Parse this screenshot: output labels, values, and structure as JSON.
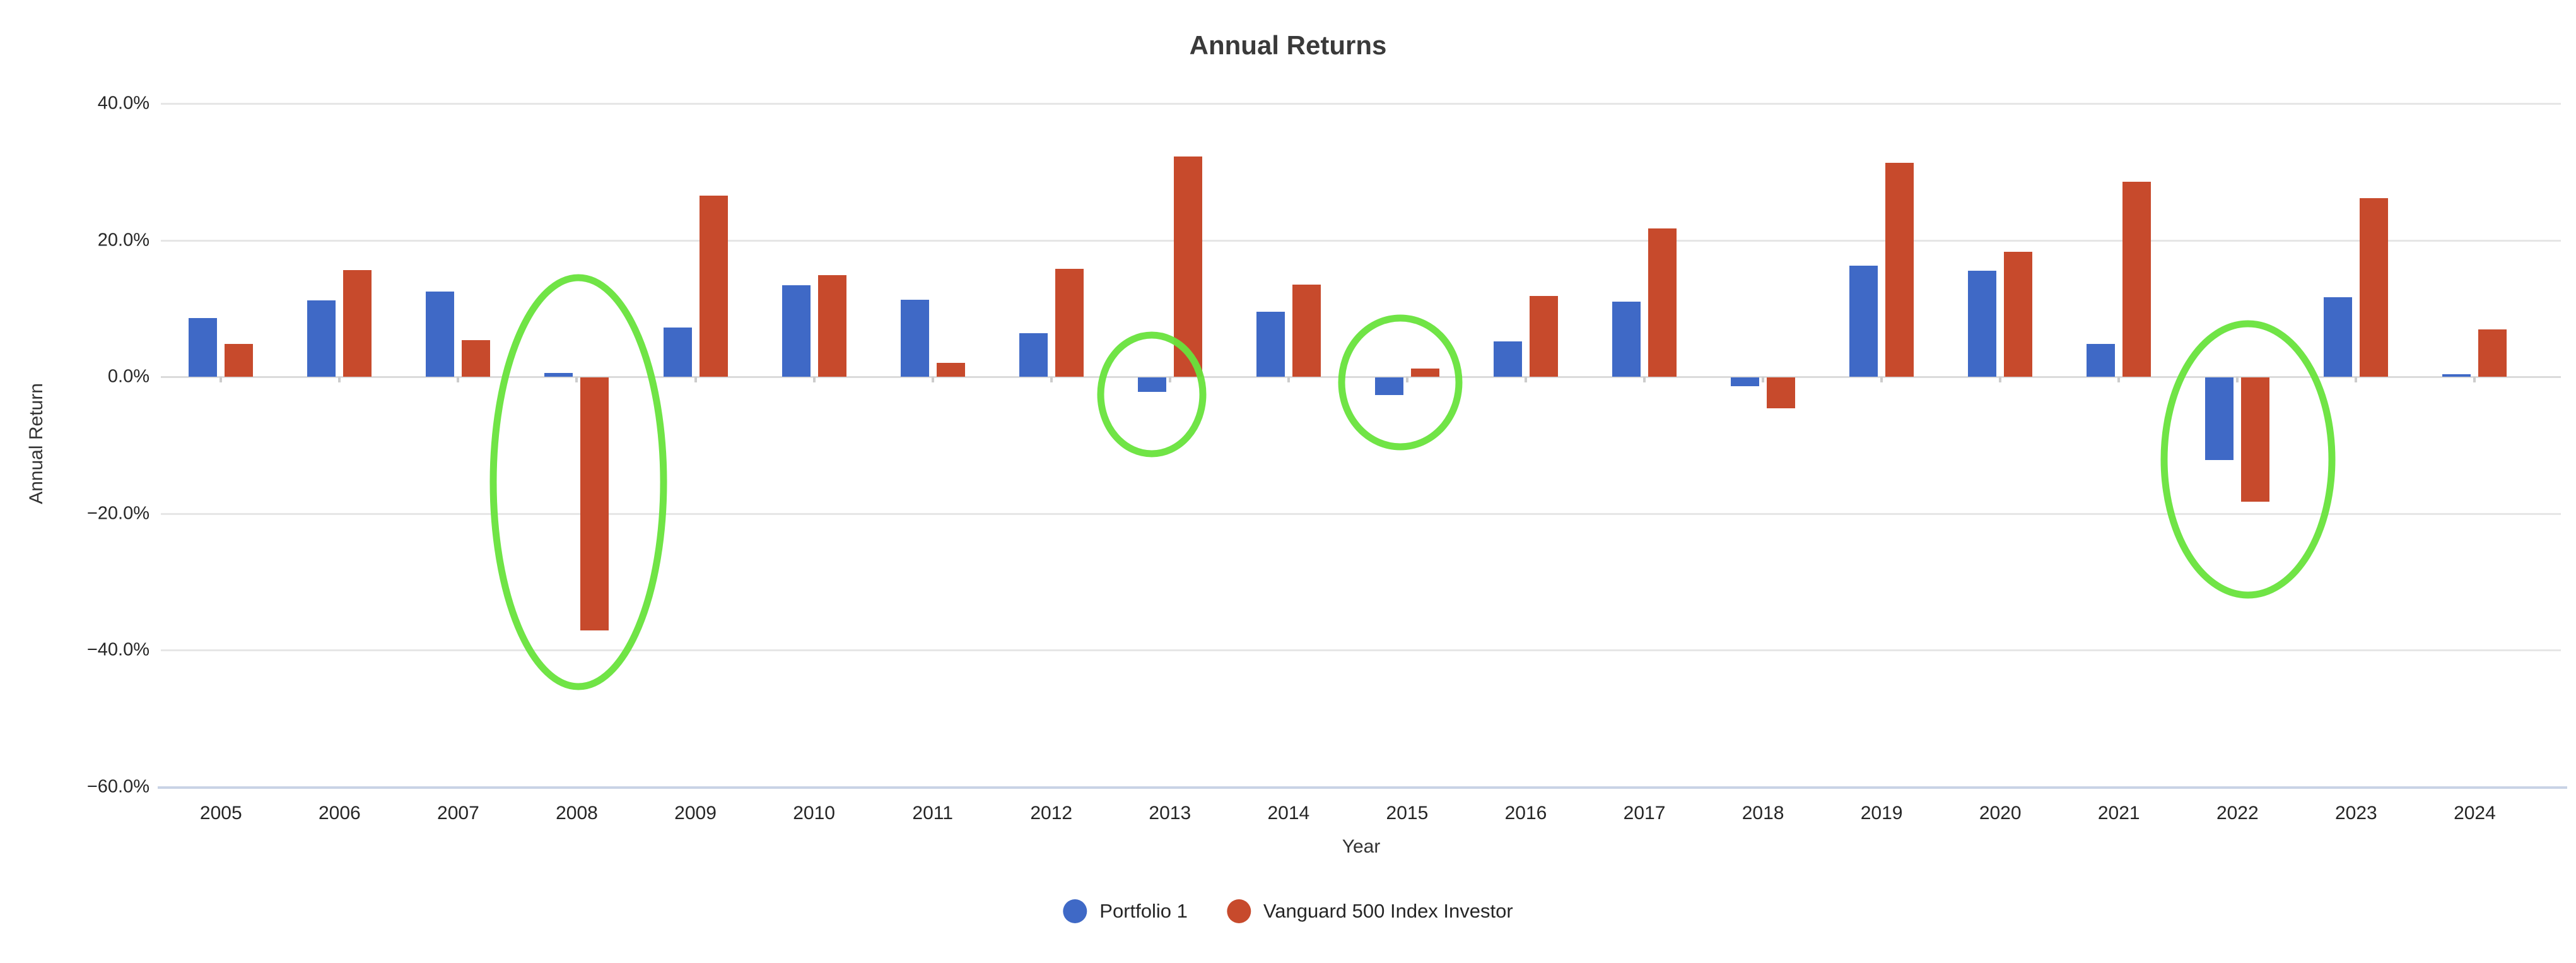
{
  "chart_data": {
    "type": "bar",
    "title": "Annual Returns",
    "xlabel": "Year",
    "ylabel": "Annual Return",
    "categories": [
      "2005",
      "2006",
      "2007",
      "2008",
      "2009",
      "2010",
      "2011",
      "2012",
      "2013",
      "2014",
      "2015",
      "2016",
      "2017",
      "2018",
      "2019",
      "2020",
      "2021",
      "2022",
      "2023",
      "2024"
    ],
    "series": [
      {
        "name": "Portfolio 1",
        "color": "#3f69c6",
        "values": [
          8.6,
          11.2,
          12.5,
          0.6,
          7.2,
          13.4,
          11.3,
          6.4,
          -2.1,
          9.5,
          -2.6,
          5.2,
          11.0,
          -1.3,
          16.3,
          15.5,
          4.8,
          -12.1,
          11.6,
          0.4
        ]
      },
      {
        "name": "Vanguard 500 Index Investor",
        "color": "#c74a2c",
        "values": [
          4.8,
          15.6,
          5.4,
          -37.0,
          26.5,
          14.9,
          2.0,
          15.8,
          32.2,
          13.5,
          1.2,
          11.8,
          21.7,
          -4.5,
          31.3,
          18.3,
          28.5,
          -18.2,
          26.1,
          6.9
        ]
      }
    ],
    "y_axis": {
      "min": -60,
      "max": 40,
      "tick_step": 20,
      "tick_labels": [
        "40.0%",
        "20.0%",
        "0.0%",
        "−20.0%",
        "−40.0%",
        "−60.0%"
      ],
      "unit": "percent"
    },
    "grid": true,
    "legend_position": "bottom",
    "annotation_color": "#68e33c",
    "annotations": [
      {
        "shape": "ellipse",
        "year": "2008",
        "circled": "Vanguard 500 Index Investor large loss",
        "cx": 917,
        "cy": 764,
        "rx": 135,
        "ry": 324,
        "stroke_width": 11
      },
      {
        "shape": "ellipse",
        "year": "2013",
        "circled": "Portfolio 1 small negative return",
        "cx": 1826,
        "cy": 625,
        "rx": 81,
        "ry": 94,
        "stroke_width": 11
      },
      {
        "shape": "ellipse",
        "year": "2015",
        "circled": "Portfolio 1 negative vs index flat",
        "cx": 2220,
        "cy": 606,
        "rx": 93,
        "ry": 102,
        "stroke_width": 11
      },
      {
        "shape": "ellipse",
        "year": "2022",
        "circled": "Both series negative returns",
        "cx": 3564,
        "cy": 728,
        "rx": 133,
        "ry": 215,
        "stroke_width": 11
      }
    ]
  }
}
